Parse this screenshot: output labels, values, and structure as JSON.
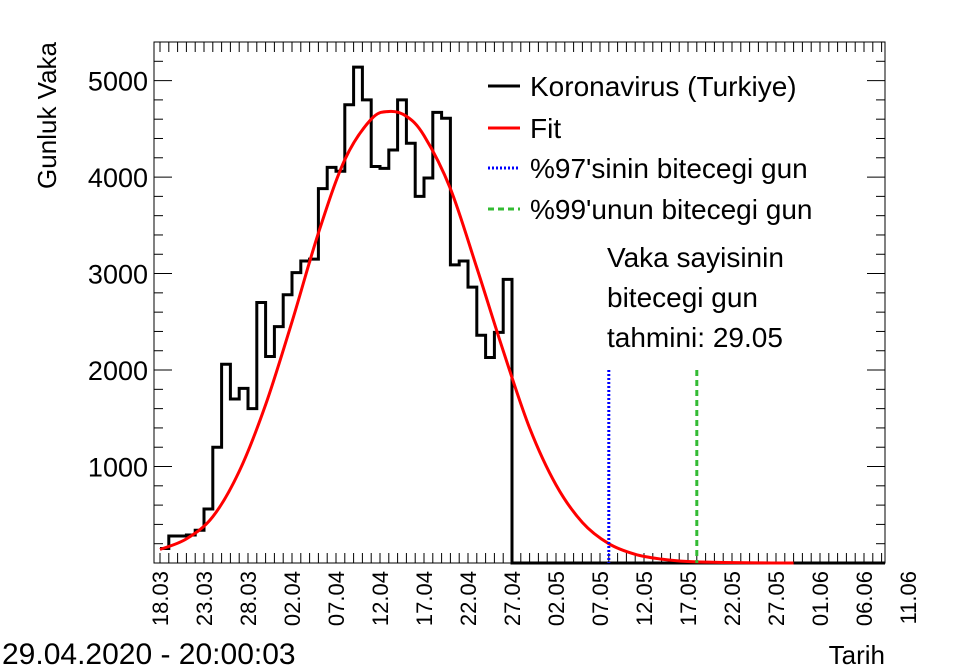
{
  "chart_data": {
    "type": "line",
    "xlabel": "Tarih",
    "ylabel": "Gunluk Vaka",
    "footer": "29.04.2020 - 20:00:03",
    "ylim": [
      0,
      5400
    ],
    "yticks": [
      1000,
      2000,
      3000,
      4000,
      5000
    ],
    "xrange_days": [
      0,
      83
    ],
    "xticks": [
      {
        "day": 0,
        "label": "18.03"
      },
      {
        "day": 5,
        "label": "23.03"
      },
      {
        "day": 10,
        "label": "28.03"
      },
      {
        "day": 15,
        "label": "02.04"
      },
      {
        "day": 20,
        "label": "07.04"
      },
      {
        "day": 25,
        "label": "12.04"
      },
      {
        "day": 30,
        "label": "17.04"
      },
      {
        "day": 35,
        "label": "22.04"
      },
      {
        "day": 40,
        "label": "27.04"
      },
      {
        "day": 45,
        "label": "02.05"
      },
      {
        "day": 50,
        "label": "07.05"
      },
      {
        "day": 55,
        "label": "12.05"
      },
      {
        "day": 60,
        "label": "17.05"
      },
      {
        "day": 65,
        "label": "22.05"
      },
      {
        "day": 70,
        "label": "27.05"
      },
      {
        "day": 75,
        "label": "01.06"
      },
      {
        "day": 80,
        "label": "06.06"
      },
      {
        "day": 85,
        "label": "11.06"
      }
    ],
    "series": [
      {
        "name": "Koronavirus (Turkiye)",
        "color": "#000000",
        "style": "histogram",
        "start_date": "18.03",
        "values": [
          150,
          280,
          280,
          290,
          340,
          560,
          1200,
          2060,
          1700,
          1810,
          1600,
          2700,
          2140,
          2450,
          2780,
          3010,
          3130,
          3150,
          3880,
          4100,
          4060,
          4750,
          5140,
          4800,
          4110,
          4090,
          4280,
          4800,
          4350,
          3800,
          3990,
          4670,
          4610,
          3090,
          3130,
          2860,
          2360,
          2130,
          2390,
          2940,
          0,
          0,
          0,
          0,
          0,
          0,
          0,
          0,
          0,
          0,
          0,
          0,
          0,
          0,
          0,
          0,
          0,
          0,
          0,
          0,
          0,
          0,
          0,
          0,
          0,
          0,
          0,
          0,
          0,
          0,
          0,
          0,
          0,
          0,
          0,
          0,
          0,
          0,
          0,
          0,
          0,
          0,
          0
        ]
      },
      {
        "name": "Fit",
        "color": "#ff0000",
        "style": "line",
        "x_days": [
          0,
          3,
          6,
          9,
          12,
          15,
          18,
          21,
          24,
          26,
          28,
          30,
          33,
          36,
          39,
          42,
          45,
          48,
          51,
          54,
          57,
          60,
          64,
          68,
          72
        ],
        "values": [
          140,
          250,
          480,
          950,
          1640,
          2500,
          3420,
          4180,
          4600,
          4680,
          4630,
          4430,
          3880,
          3060,
          2200,
          1400,
          810,
          420,
          200,
          90,
          40,
          15,
          5,
          1,
          0
        ]
      },
      {
        "name": "%97'sinin bitecegi gun",
        "color": "#0000ff",
        "style": "dotted-vline",
        "x_day": 51,
        "y_top": 2000
      },
      {
        "name": "%99'unun bitecegi gun",
        "color": "#33bb33",
        "style": "dashed-vline",
        "x_day": 61,
        "y_top": 2000
      }
    ],
    "annotation": [
      "Vaka sayisinin",
      "bitecegi gun",
      "tahmini: 29.05"
    ],
    "legend_position": "top-right"
  }
}
